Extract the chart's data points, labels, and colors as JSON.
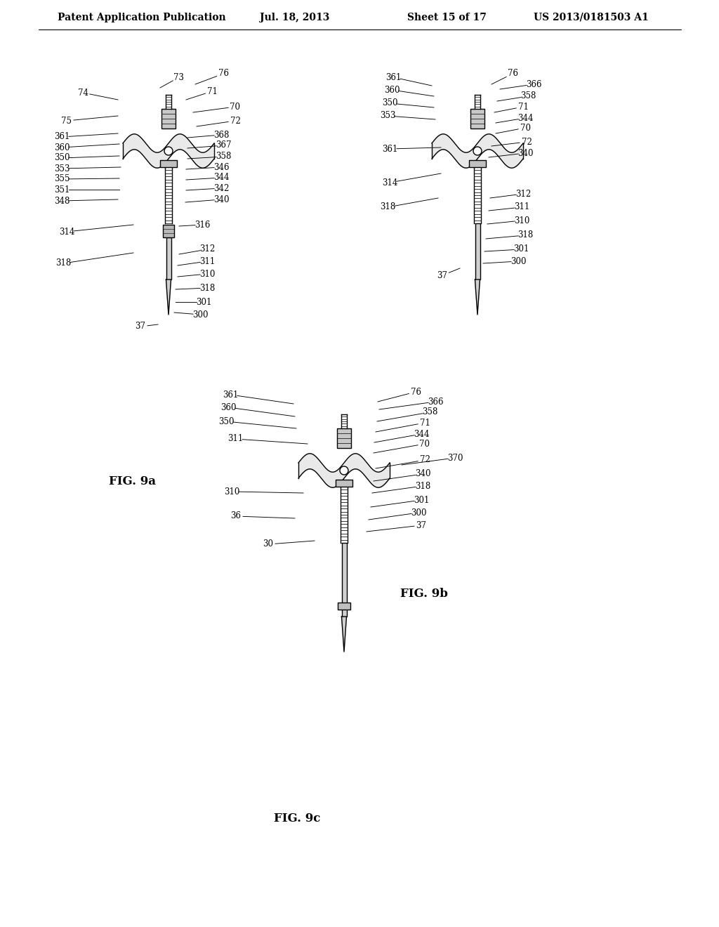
{
  "title": "Patent Application Publication",
  "date": "Jul. 18, 2013",
  "sheet": "Sheet 15 of 17",
  "patent_num": "US 2013/0181503 A1",
  "bg_color": "#ffffff",
  "fig_label_a": "FIG. 9a",
  "fig_label_b": "FIG. 9b",
  "fig_label_c": "FIG. 9c"
}
